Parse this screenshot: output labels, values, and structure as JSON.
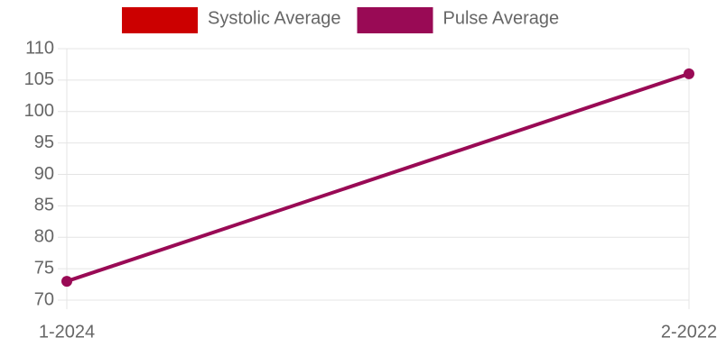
{
  "chart_data": {
    "type": "line",
    "categories": [
      "1-2024",
      "2-2022"
    ],
    "series": [
      {
        "name": "Systolic Average",
        "color": "#cc0000",
        "values": [
          null,
          null
        ]
      },
      {
        "name": "Pulse Average",
        "color": "#990a55",
        "values": [
          73,
          106
        ]
      }
    ],
    "ylim": [
      70,
      110
    ],
    "yticks": [
      70,
      75,
      80,
      85,
      90,
      95,
      100,
      105,
      110
    ],
    "grid": true,
    "legend": "top"
  }
}
